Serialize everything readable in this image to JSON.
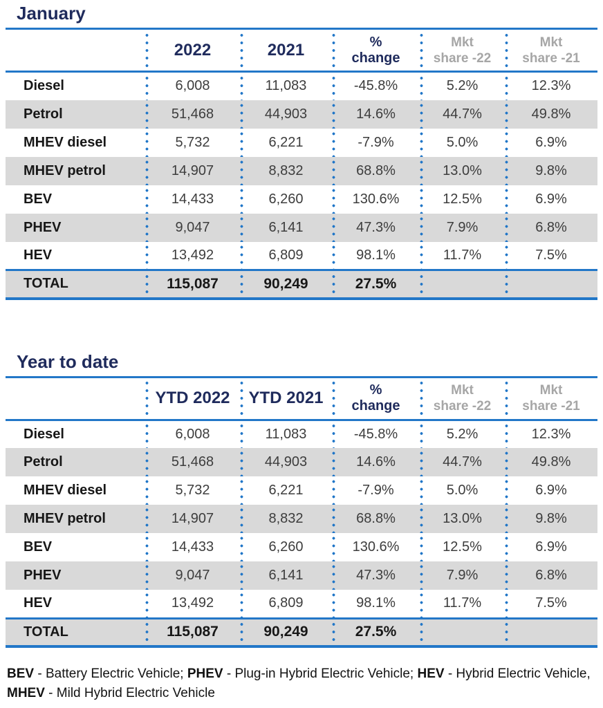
{
  "colors": {
    "navy": "#1F2B5C",
    "blue_rule": "#2277C8",
    "stripe_gray": "#D9D9D9",
    "header_gray": "#A6A6A6"
  },
  "january": {
    "title": "January",
    "headers": {
      "year_a": "2022",
      "year_b": "2021",
      "pct_line1": "%",
      "pct_line2": "change",
      "mkt22_line1": "Mkt",
      "mkt22_line2": "share -22",
      "mkt21_line1": "Mkt",
      "mkt21_line2": "share -21"
    },
    "rows": [
      {
        "label": "Diesel",
        "a": "6,008",
        "b": "11,083",
        "pct": "-45.8%",
        "mkt22": "5.2%",
        "mkt21": "12.3%"
      },
      {
        "label": "Petrol",
        "a": "51,468",
        "b": "44,903",
        "pct": "14.6%",
        "mkt22": "44.7%",
        "mkt21": "49.8%"
      },
      {
        "label": "MHEV diesel",
        "a": "5,732",
        "b": "6,221",
        "pct": "-7.9%",
        "mkt22": "5.0%",
        "mkt21": "6.9%"
      },
      {
        "label": "MHEV petrol",
        "a": "14,907",
        "b": "8,832",
        "pct": "68.8%",
        "mkt22": "13.0%",
        "mkt21": "9.8%"
      },
      {
        "label": "BEV",
        "a": "14,433",
        "b": "6,260",
        "pct": "130.6%",
        "mkt22": "12.5%",
        "mkt21": "6.9%"
      },
      {
        "label": "PHEV",
        "a": "9,047",
        "b": "6,141",
        "pct": "47.3%",
        "mkt22": "7.9%",
        "mkt21": "6.8%"
      },
      {
        "label": "HEV",
        "a": "13,492",
        "b": "6,809",
        "pct": "98.1%",
        "mkt22": "11.7%",
        "mkt21": "7.5%"
      }
    ],
    "total": {
      "label": "TOTAL",
      "a": "115,087",
      "b": "90,249",
      "pct": "27.5%",
      "mkt22": "",
      "mkt21": ""
    }
  },
  "ytd": {
    "title": "Year to date",
    "headers": {
      "year_a": "YTD 2022",
      "year_b": "YTD 2021",
      "pct_line1": "%",
      "pct_line2": "change",
      "mkt22_line1": "Mkt",
      "mkt22_line2": "share -22",
      "mkt21_line1": "Mkt",
      "mkt21_line2": "share -21"
    },
    "rows": [
      {
        "label": "Diesel",
        "a": "6,008",
        "b": "11,083",
        "pct": "-45.8%",
        "mkt22": "5.2%",
        "mkt21": "12.3%"
      },
      {
        "label": "Petrol",
        "a": "51,468",
        "b": "44,903",
        "pct": "14.6%",
        "mkt22": "44.7%",
        "mkt21": "49.8%"
      },
      {
        "label": "MHEV diesel",
        "a": "5,732",
        "b": "6,221",
        "pct": "-7.9%",
        "mkt22": "5.0%",
        "mkt21": "6.9%"
      },
      {
        "label": "MHEV petrol",
        "a": "14,907",
        "b": "8,832",
        "pct": "68.8%",
        "mkt22": "13.0%",
        "mkt21": "9.8%"
      },
      {
        "label": "BEV",
        "a": "14,433",
        "b": "6,260",
        "pct": "130.6%",
        "mkt22": "12.5%",
        "mkt21": "6.9%"
      },
      {
        "label": "PHEV",
        "a": "9,047",
        "b": "6,141",
        "pct": "47.3%",
        "mkt22": "7.9%",
        "mkt21": "6.8%"
      },
      {
        "label": "HEV",
        "a": "13,492",
        "b": "6,809",
        "pct": "98.1%",
        "mkt22": "11.7%",
        "mkt21": "7.5%"
      }
    ],
    "total": {
      "label": "TOTAL",
      "a": "115,087",
      "b": "90,249",
      "pct": "27.5%",
      "mkt22": "",
      "mkt21": ""
    }
  },
  "footnote": {
    "line1": [
      {
        "abbr": "BEV",
        "desc": " - Battery Electric Vehicle; "
      },
      {
        "abbr": "PHEV",
        "desc": " - Plug-in Hybrid Electric Vehicle; "
      },
      {
        "abbr": "HEV",
        "desc": " - Hybrid Electric Vehicle,"
      }
    ],
    "line2": [
      {
        "abbr": "MHEV",
        "desc": " - Mild Hybrid Electric Vehicle"
      }
    ]
  },
  "chart_data": [
    {
      "type": "table",
      "title": "January",
      "columns": [
        "",
        "2022",
        "2021",
        "% change",
        "Mkt share -22",
        "Mkt share -21"
      ],
      "rows": [
        [
          "Diesel",
          6008,
          11083,
          -45.8,
          5.2,
          12.3
        ],
        [
          "Petrol",
          51468,
          44903,
          14.6,
          44.7,
          49.8
        ],
        [
          "MHEV diesel",
          5732,
          6221,
          -7.9,
          5.0,
          6.9
        ],
        [
          "MHEV petrol",
          14907,
          8832,
          68.8,
          13.0,
          9.8
        ],
        [
          "BEV",
          14433,
          6260,
          130.6,
          12.5,
          6.9
        ],
        [
          "PHEV",
          9047,
          6141,
          47.3,
          7.9,
          6.8
        ],
        [
          "HEV",
          13492,
          6809,
          98.1,
          11.7,
          7.5
        ],
        [
          "TOTAL",
          115087,
          90249,
          27.5,
          null,
          null
        ]
      ]
    },
    {
      "type": "table",
      "title": "Year to date",
      "columns": [
        "",
        "YTD 2022",
        "YTD 2021",
        "% change",
        "Mkt share -22",
        "Mkt share -21"
      ],
      "rows": [
        [
          "Diesel",
          6008,
          11083,
          -45.8,
          5.2,
          12.3
        ],
        [
          "Petrol",
          51468,
          44903,
          14.6,
          44.7,
          49.8
        ],
        [
          "MHEV diesel",
          5732,
          6221,
          -7.9,
          5.0,
          6.9
        ],
        [
          "MHEV petrol",
          14907,
          8832,
          68.8,
          13.0,
          9.8
        ],
        [
          "BEV",
          14433,
          6260,
          130.6,
          12.5,
          6.9
        ],
        [
          "PHEV",
          9047,
          6141,
          47.3,
          7.9,
          6.8
        ],
        [
          "HEV",
          13492,
          6809,
          98.1,
          11.7,
          7.5
        ],
        [
          "TOTAL",
          115087,
          90249,
          27.5,
          null,
          null
        ]
      ]
    }
  ]
}
